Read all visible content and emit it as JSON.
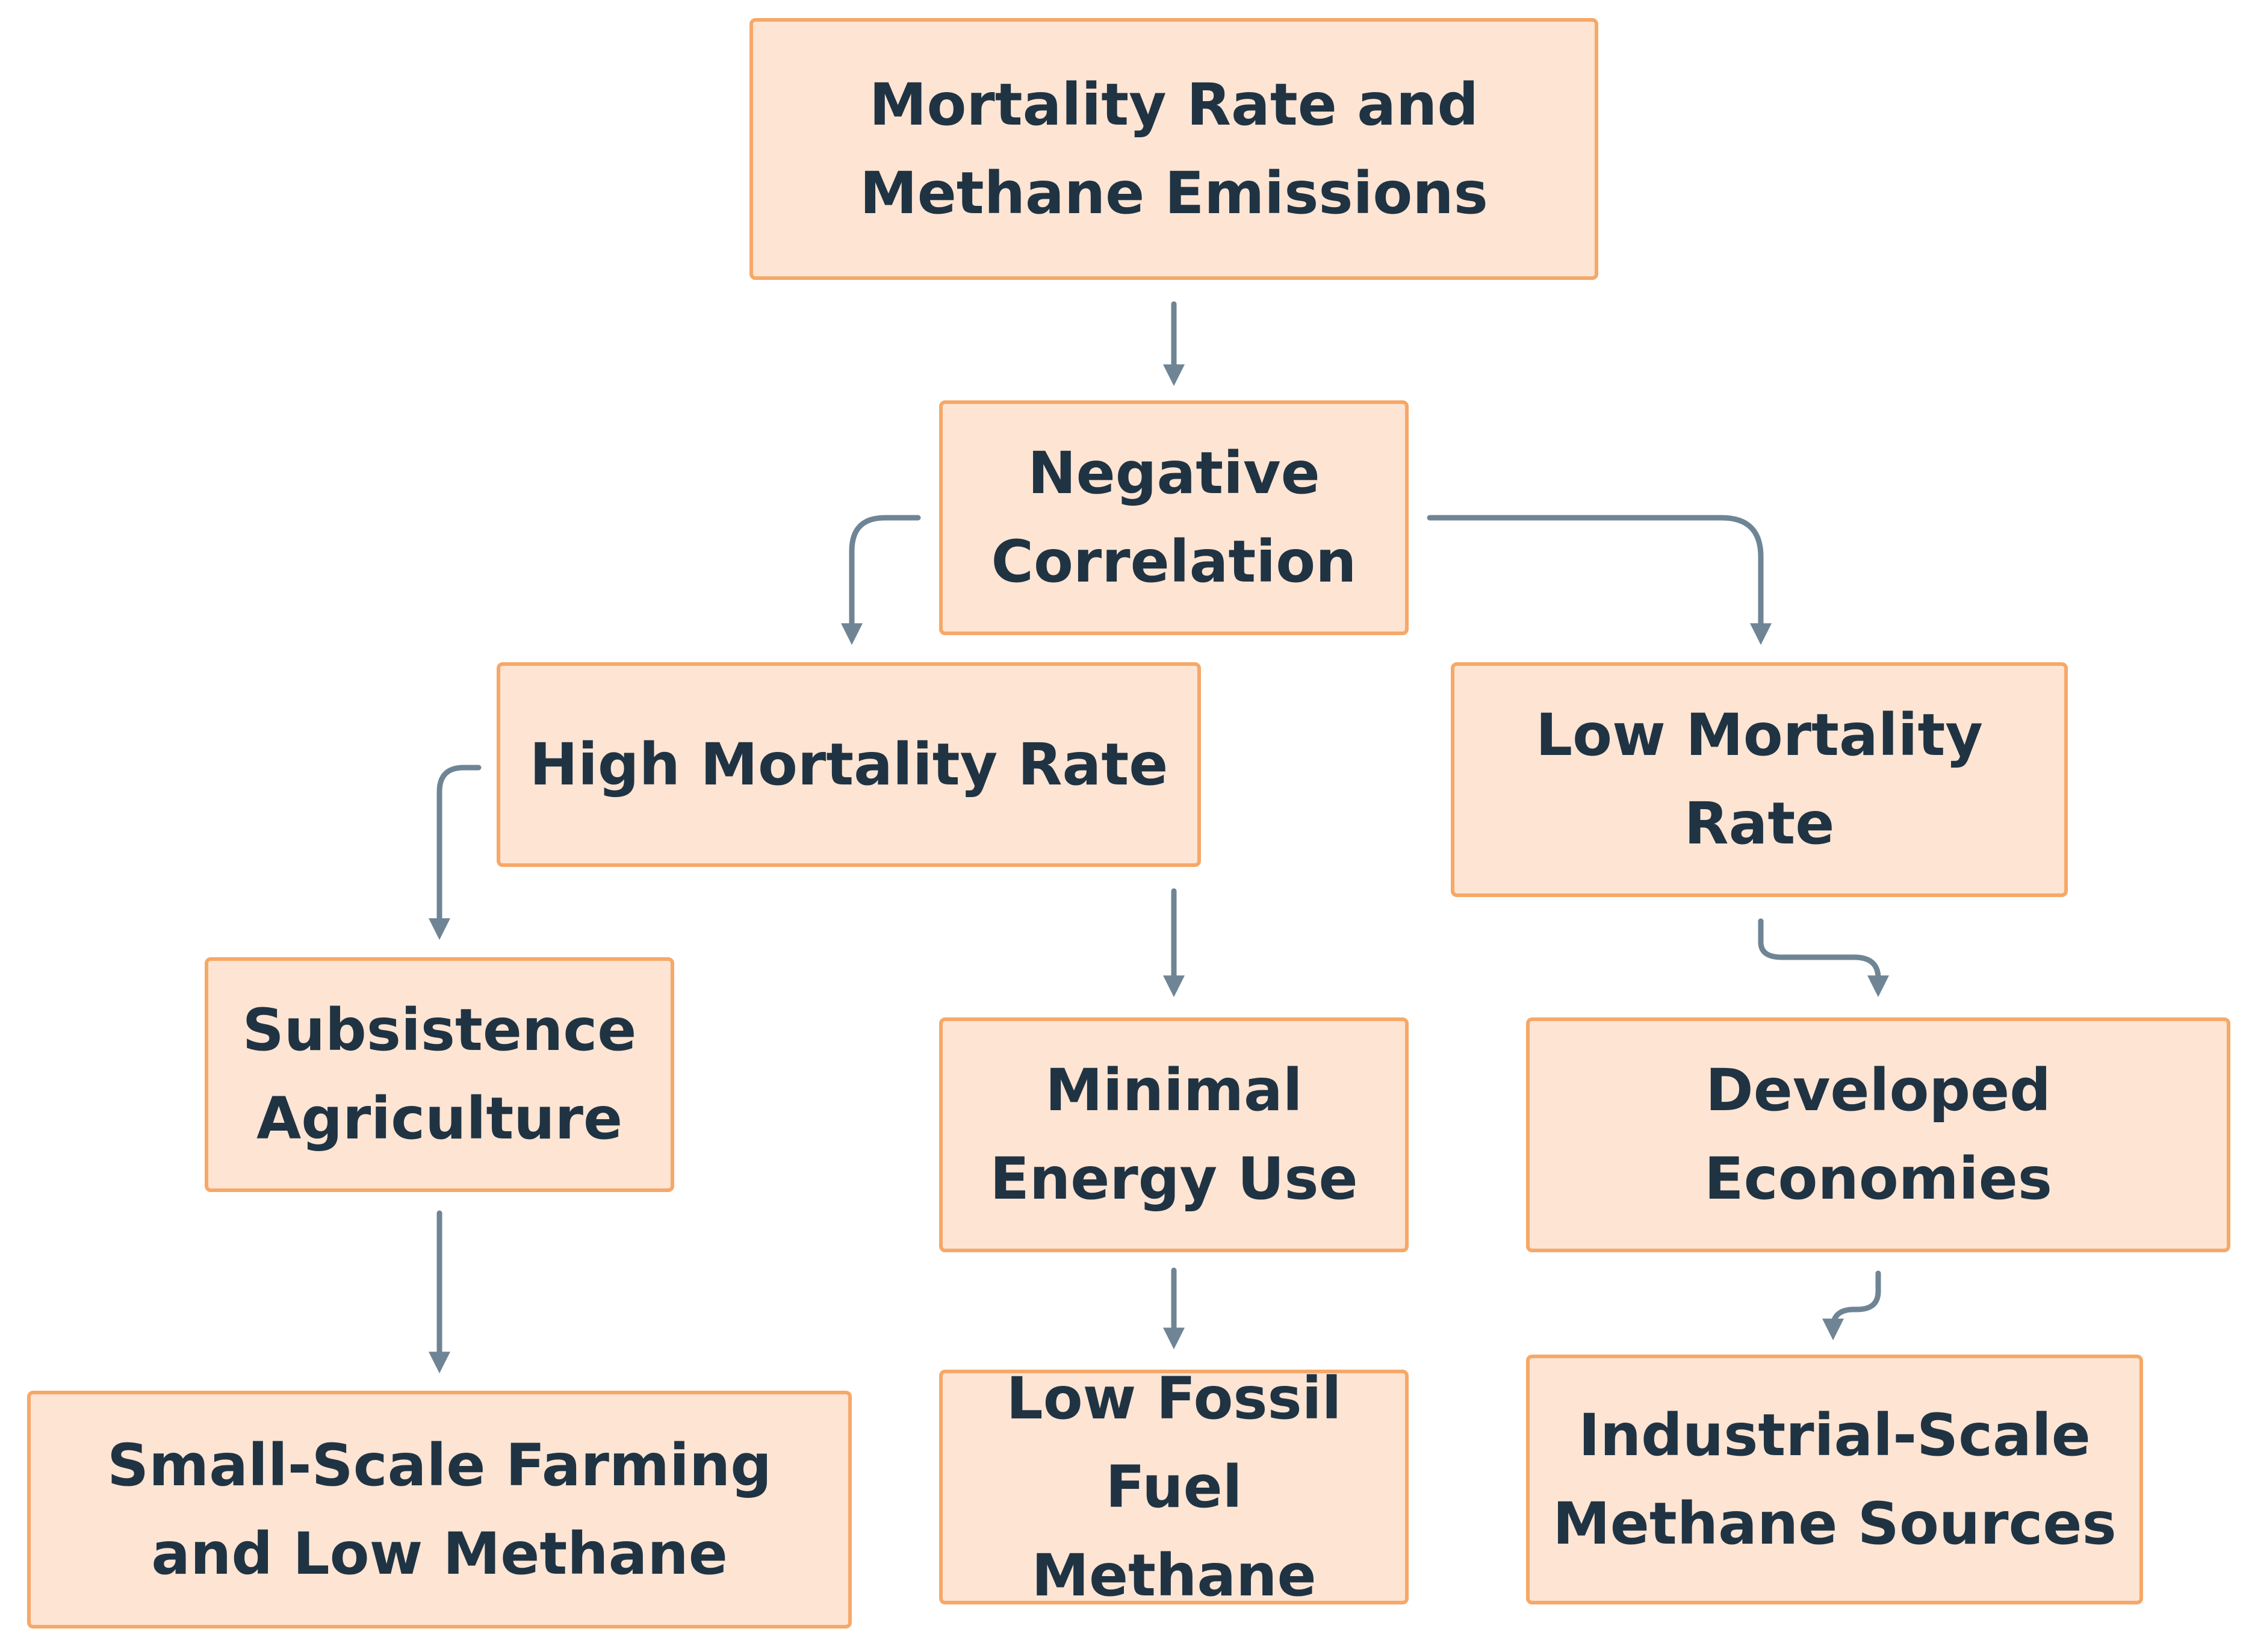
{
  "nodes": {
    "root": "Mortality Rate and Methane Emissions",
    "correlation": "Negative Correlation",
    "high_mortality": "High Mortality Rate",
    "low_mortality": "Low Mortality Rate",
    "subsistence": "Subsistence Agriculture",
    "minimal_energy": "Minimal Energy Use",
    "developed": "Developed Economies",
    "small_scale": "Small-Scale Farming and Low Methane",
    "low_fossil": "Low Fossil Fuel Methane",
    "industrial": "Industrial-Scale Methane Sources"
  },
  "colors": {
    "node_fill": "#fde4d3",
    "node_border": "#f6a868",
    "text": "#1f3343",
    "arrow": "#6f8595"
  }
}
